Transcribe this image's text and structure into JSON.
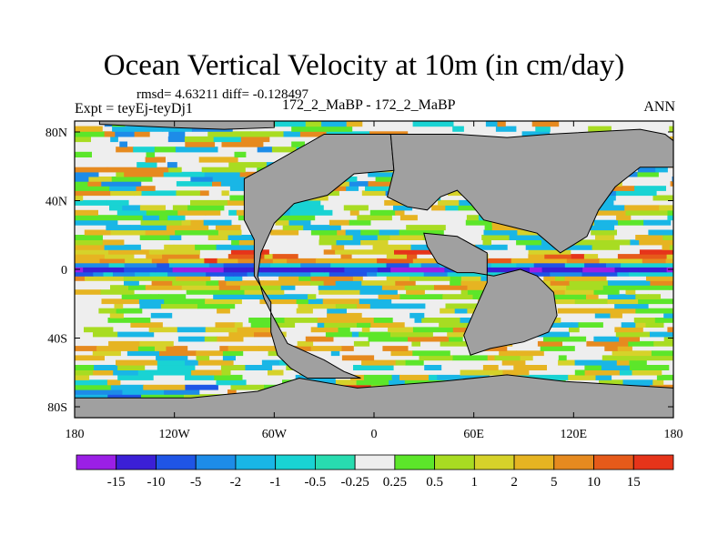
{
  "header": {
    "title": "Ocean Vertical Velocity at 10m (in cm/day)",
    "stats": "rmsd= 4.63211 diff= -0.128497",
    "experiment": "Expt = teyEj-teyDj1",
    "cases": "172_2_MaBP - 172_2_MaBP",
    "season": "ANN"
  },
  "chart_data": {
    "type": "heatmap",
    "title": "Ocean Vertical Velocity at 10m (in cm/day)",
    "x_ticks": [
      "180",
      "120W",
      "60W",
      "0",
      "60E",
      "120E",
      "180"
    ],
    "y_ticks": [
      "80N",
      "40N",
      "0",
      "40S",
      "80S"
    ],
    "lon_range": [
      -180,
      180
    ],
    "lat_range": [
      -90,
      90
    ],
    "land_color": "#a0a0a0",
    "colorbar": {
      "labels": [
        "-15",
        "-10",
        "-5",
        "-2",
        "-1",
        "-0.5",
        "-0.25",
        "0.25",
        "0.5",
        "1",
        "2",
        "5",
        "10",
        "15"
      ],
      "colors": [
        "#9b1fe6",
        "#3b1fd6",
        "#1f55e6",
        "#1d8ce8",
        "#19b6e6",
        "#19d3d3",
        "#28dcb0",
        "#eeeeee",
        "#5ce62a",
        "#a8dc22",
        "#d6d22a",
        "#e6b422",
        "#e68a1f",
        "#e65a1a",
        "#e6341a"
      ]
    }
  }
}
